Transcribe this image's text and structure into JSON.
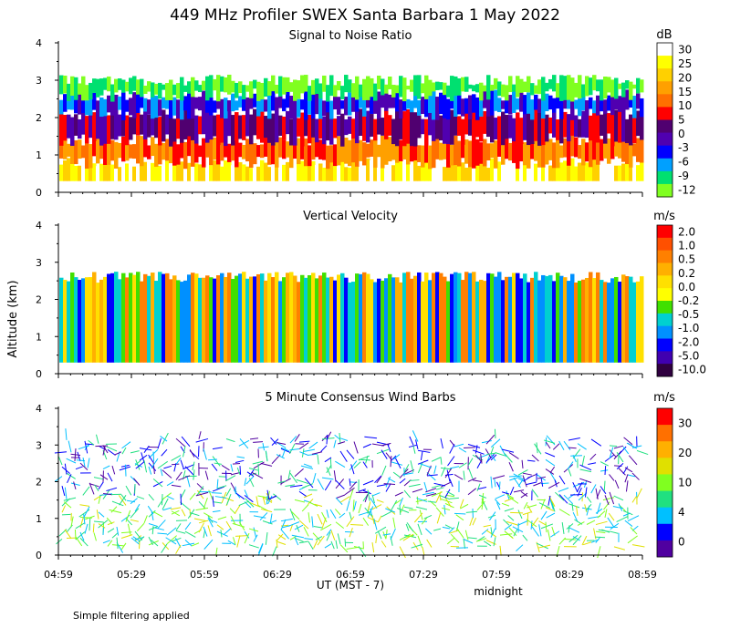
{
  "page_title": "449 MHz Profiler SWEX Santa Barbara  1 May 2022",
  "y_axis_label": "Altitude (km)",
  "x_axis_label": "UT  (MST - 7)",
  "midnight_label": "midnight",
  "footer_note": "Simple filtering applied",
  "x_ticks": [
    "04:59",
    "05:29",
    "05:59",
    "06:29",
    "06:59",
    "07:29",
    "07:59",
    "08:29",
    "08:59"
  ],
  "y_ticks": [
    "0",
    "1",
    "2",
    "3",
    "4"
  ],
  "chart_data": [
    {
      "type": "heatmap",
      "title": "Signal to Noise Ratio",
      "ylim": [
        0,
        4
      ],
      "colorbar": {
        "unit": "dB",
        "labels": [
          "30",
          "25",
          "20",
          "15",
          "10",
          "5",
          "0",
          "-3",
          "-6",
          "-9",
          "-12"
        ],
        "colors": [
          "#ffffff",
          "#ffff00",
          "#ffd000",
          "#ffa000",
          "#ff7000",
          "#ff0000",
          "#500070",
          "#5000b0",
          "#0000ff",
          "#00a0ff",
          "#00e070",
          "#80ff20"
        ]
      },
      "layers": [
        {
          "from_km": 0.3,
          "to_km": 0.8,
          "colors": [
            "#ffffff",
            "#ffff00",
            "#ffd000"
          ]
        },
        {
          "from_km": 0.8,
          "to_km": 1.4,
          "colors": [
            "#ffa000",
            "#ff7000",
            "#ff0000"
          ]
        },
        {
          "from_km": 1.4,
          "to_km": 2.1,
          "colors": [
            "#500070",
            "#5000b0",
            "#ff0000"
          ]
        },
        {
          "from_km": 2.1,
          "to_km": 2.6,
          "colors": [
            "#5000b0",
            "#0000ff",
            "#00a0ff"
          ]
        },
        {
          "from_km": 2.6,
          "to_km": 3.0,
          "colors": [
            "#00e070",
            "#80ff20"
          ]
        }
      ]
    },
    {
      "type": "heatmap",
      "title": "Vertical Velocity",
      "ylim": [
        0,
        4
      ],
      "colorbar": {
        "unit": "m/s",
        "labels": [
          "2.0",
          "1.0",
          "0.5",
          "0.2",
          "0.0",
          "-0.2",
          "-0.5",
          "-1.0",
          "-2.0",
          "-5.0",
          "-10.0"
        ],
        "colors": [
          "#ff0000",
          "#ff5000",
          "#ff8000",
          "#ffb000",
          "#ffe000",
          "#ffff00",
          "#40e000",
          "#00d0d0",
          "#0090ff",
          "#0000ff",
          "#4000b0",
          "#300040"
        ]
      },
      "layers": [
        {
          "from_km": 0.3,
          "to_km": 2.6,
          "colors": [
            "#ff8000",
            "#ffb000",
            "#40e000",
            "#00d0d0",
            "#0090ff",
            "#0000ff",
            "#ffe000"
          ]
        }
      ]
    },
    {
      "type": "wind-barbs",
      "title": "5 Minute Consensus Wind Barbs",
      "ylim": [
        0,
        4
      ],
      "colorbar": {
        "unit": "m/s",
        "labels": [
          "30",
          "20",
          "10",
          "4",
          "0"
        ],
        "colors": [
          "#ff0000",
          "#ff7000",
          "#ffb000",
          "#e0e000",
          "#80ff20",
          "#20e080",
          "#00c0ff",
          "#0000ff",
          "#5000a0"
        ]
      },
      "layers": [
        {
          "from_km": 0.2,
          "to_km": 1.6,
          "colors": [
            "#80ff20",
            "#20e080",
            "#e0e000",
            "#00c0ff"
          ]
        },
        {
          "from_km": 1.6,
          "to_km": 3.2,
          "colors": [
            "#0000ff",
            "#5000a0",
            "#00c0ff",
            "#20e080"
          ]
        }
      ]
    }
  ]
}
